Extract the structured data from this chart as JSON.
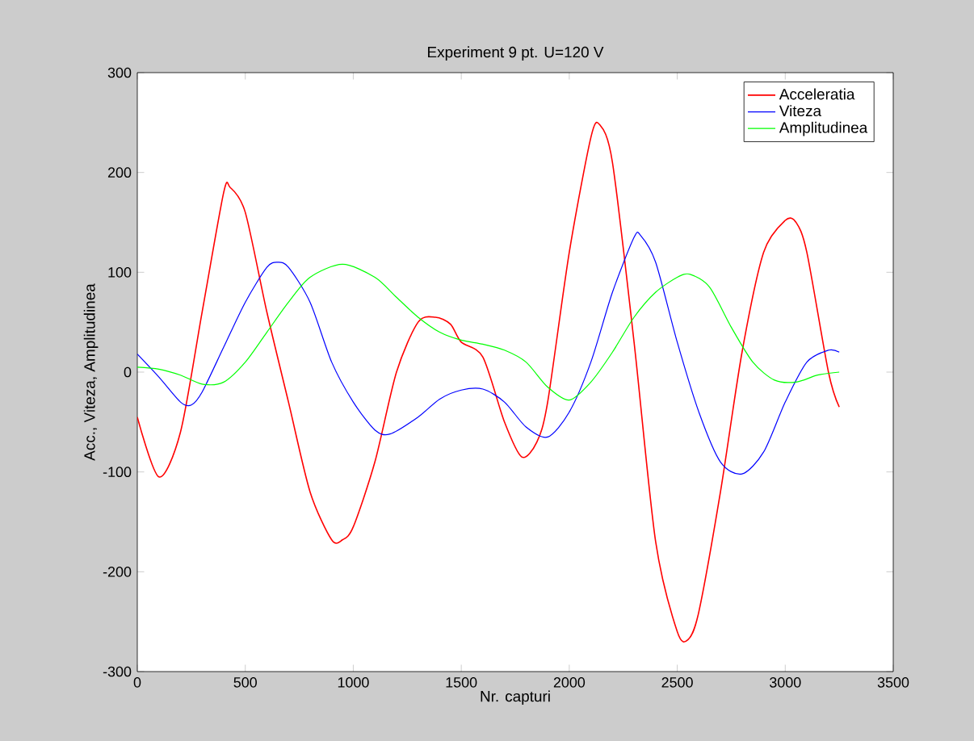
{
  "chart_data": {
    "type": "line",
    "title": "Experiment 9 pt. U=120 V",
    "xlabel": "Nr. capturi",
    "ylabel": "Acc., Viteza, Amplitudinea",
    "xlim": [
      0,
      3500
    ],
    "ylim": [
      -300,
      300
    ],
    "xticks": [
      0,
      500,
      1000,
      1500,
      2000,
      2500,
      3000,
      3500
    ],
    "yticks": [
      -300,
      -200,
      -100,
      0,
      100,
      200,
      300
    ],
    "legend": "top right",
    "grid": false,
    "marker": "none",
    "line_style": "solid",
    "series": [
      {
        "name": "Acceleratia",
        "color": "#ff0000",
        "x": [
          0,
          100,
          200,
          300,
          400,
          430,
          500,
          600,
          700,
          800,
          900,
          950,
          1000,
          1100,
          1200,
          1300,
          1380,
          1450,
          1500,
          1600,
          1700,
          1780,
          1850,
          1900,
          2000,
          2100,
          2140,
          2200,
          2300,
          2400,
          2500,
          2550,
          2600,
          2700,
          2800,
          2900,
          3000,
          3050,
          3100,
          3200,
          3250
        ],
        "values": [
          -45,
          -105,
          -60,
          60,
          180,
          185,
          160,
          60,
          -30,
          -120,
          -168,
          -168,
          -155,
          -90,
          0,
          50,
          55,
          48,
          30,
          15,
          -50,
          -85,
          -70,
          -30,
          120,
          235,
          248,
          210,
          30,
          -170,
          -260,
          -268,
          -240,
          -120,
          20,
          120,
          152,
          150,
          120,
          0,
          -35
        ]
      },
      {
        "name": "Viteza",
        "color": "#0000ff",
        "x": [
          0,
          100,
          200,
          250,
          300,
          400,
          500,
          600,
          650,
          700,
          800,
          900,
          1000,
          1100,
          1170,
          1300,
          1400,
          1500,
          1600,
          1700,
          1800,
          1900,
          2000,
          2100,
          2200,
          2300,
          2330,
          2400,
          2500,
          2600,
          2700,
          2800,
          2900,
          3000,
          3100,
          3200,
          3250
        ],
        "values": [
          18,
          -5,
          -30,
          -33,
          -20,
          25,
          70,
          105,
          110,
          105,
          70,
          10,
          -30,
          -58,
          -62,
          -45,
          -27,
          -18,
          -17,
          -30,
          -55,
          -65,
          -40,
          10,
          80,
          135,
          137,
          110,
          30,
          -40,
          -90,
          -102,
          -80,
          -30,
          10,
          22,
          20
        ]
      },
      {
        "name": "Amplitudinea",
        "color": "#00ff00",
        "x": [
          0,
          100,
          200,
          300,
          400,
          500,
          600,
          700,
          800,
          950,
          1100,
          1200,
          1300,
          1400,
          1500,
          1600,
          1700,
          1800,
          1900,
          2000,
          2100,
          2200,
          2300,
          2400,
          2500,
          2560,
          2650,
          2750,
          2850,
          2950,
          3050,
          3150,
          3250
        ],
        "values": [
          5,
          3,
          -3,
          -12,
          -10,
          10,
          40,
          70,
          95,
          108,
          95,
          75,
          55,
          40,
          32,
          28,
          22,
          10,
          -15,
          -28,
          -10,
          20,
          55,
          80,
          95,
          98,
          85,
          45,
          10,
          -8,
          -10,
          -3,
          0
        ]
      }
    ]
  }
}
